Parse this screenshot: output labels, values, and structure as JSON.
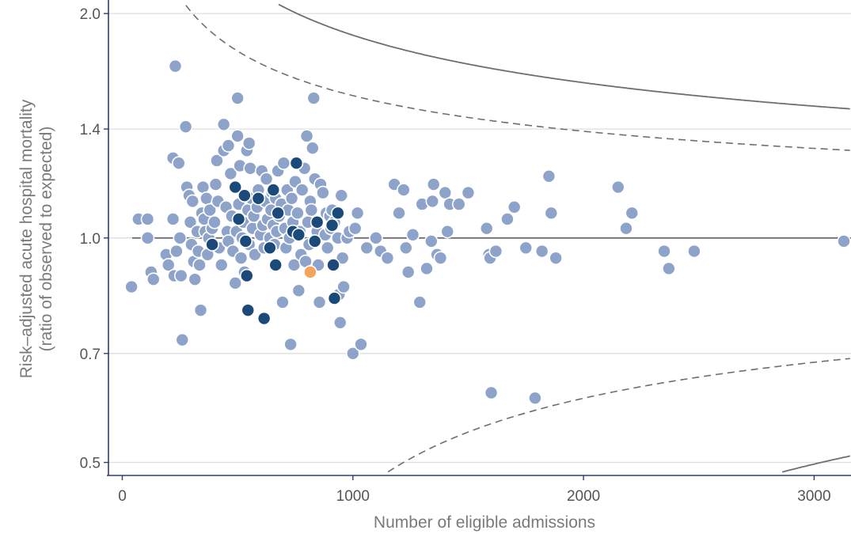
{
  "chart_data": {
    "type": "scatter",
    "title": "",
    "xlabel": "Number of eligible admissions",
    "ylabel_line1": "Risk–adjusted acute hospital mortality",
    "ylabel_line2": "(ratio of observed to expected)",
    "xlim": [
      -60,
      3160
    ],
    "ylim": [
      0.485,
      2.06
    ],
    "y_scale": "log",
    "grid": "horizontal",
    "x_ticks": [
      0,
      1000,
      2000,
      3000
    ],
    "x_tick_labels": [
      "0",
      "1000",
      "2000",
      "3000"
    ],
    "y_ticks": [
      0.5,
      0.7,
      1.0,
      1.4,
      2.0
    ],
    "y_tick_labels": [
      "0.5",
      "0.7",
      "1.0",
      "1.4",
      "2.0"
    ],
    "colors": {
      "other_hospitals": "#8ea3c9",
      "highlight_group": "#1b4a7a",
      "focal_hospital": "#f5a45c",
      "limits": "#6e6e6e",
      "grid": "#dddddd",
      "axis": "#2e3f6e"
    },
    "control_limits": {
      "inner": "dashed",
      "outer": "solid",
      "reference": 1.0
    },
    "series": [
      {
        "role": "other_hospitals",
        "points": [
          [
            40,
            0.86
          ],
          [
            70,
            1.06
          ],
          [
            110,
            1.06
          ],
          [
            110,
            1.0
          ],
          [
            125,
            0.9
          ],
          [
            135,
            0.88
          ],
          [
            190,
            0.95
          ],
          [
            200,
            0.92
          ],
          [
            220,
            1.06
          ],
          [
            220,
            1.28
          ],
          [
            225,
            0.89
          ],
          [
            230,
            1.7
          ],
          [
            235,
            0.96
          ],
          [
            245,
            1.26
          ],
          [
            250,
            1.0
          ],
          [
            255,
            0.89
          ],
          [
            260,
            0.73
          ],
          [
            275,
            1.41
          ],
          [
            280,
            1.17
          ],
          [
            290,
            1.14
          ],
          [
            295,
            1.05
          ],
          [
            300,
            0.98
          ],
          [
            305,
            1.12
          ],
          [
            310,
            0.93
          ],
          [
            315,
            0.88
          ],
          [
            325,
            1.02
          ],
          [
            330,
            0.96
          ],
          [
            335,
            0.92
          ],
          [
            340,
            0.8
          ],
          [
            345,
            1.08
          ],
          [
            350,
            1.17
          ],
          [
            355,
            1.06
          ],
          [
            360,
            1.02
          ],
          [
            365,
            1.13
          ],
          [
            370,
            0.95
          ],
          [
            375,
            1.0
          ],
          [
            380,
            1.09
          ],
          [
            390,
            1.03
          ],
          [
            400,
            1.05
          ],
          [
            405,
            1.18
          ],
          [
            410,
            1.27
          ],
          [
            415,
            1.12
          ],
          [
            420,
            0.97
          ],
          [
            430,
            0.92
          ],
          [
            440,
            1.42
          ],
          [
            440,
            1.31
          ],
          [
            450,
            1.1
          ],
          [
            455,
            1.02
          ],
          [
            460,
            1.33
          ],
          [
            460,
            0.99
          ],
          [
            470,
            1.22
          ],
          [
            475,
            1.07
          ],
          [
            480,
            0.96
          ],
          [
            490,
            0.87
          ],
          [
            495,
            1.02
          ],
          [
            500,
            1.54
          ],
          [
            500,
            1.37
          ],
          [
            505,
            1.11
          ],
          [
            510,
            1.25
          ],
          [
            515,
            0.94
          ],
          [
            520,
            1.0
          ],
          [
            525,
            1.05
          ],
          [
            530,
            0.9
          ],
          [
            535,
            1.14
          ],
          [
            540,
            1.31
          ],
          [
            545,
            1.09
          ],
          [
            550,
            1.34
          ],
          [
            550,
            0.98
          ],
          [
            555,
            1.24
          ],
          [
            560,
            1.13
          ],
          [
            565,
            1.03
          ],
          [
            570,
            1.07
          ],
          [
            575,
            0.95
          ],
          [
            585,
            1.1
          ],
          [
            590,
            1.16
          ],
          [
            600,
            1.01
          ],
          [
            605,
            1.23
          ],
          [
            610,
            1.04
          ],
          [
            615,
            0.97
          ],
          [
            620,
            1.12
          ],
          [
            625,
            1.2
          ],
          [
            630,
            1.06
          ],
          [
            640,
            1.0
          ],
          [
            645,
            1.09
          ],
          [
            650,
            1.15
          ],
          [
            655,
            1.04
          ],
          [
            660,
            0.98
          ],
          [
            665,
            1.13
          ],
          [
            670,
            1.02
          ],
          [
            675,
            1.23
          ],
          [
            680,
            1.07
          ],
          [
            690,
            1.11
          ],
          [
            695,
            0.82
          ],
          [
            700,
            1.26
          ],
          [
            705,
            1.03
          ],
          [
            710,
            0.97
          ],
          [
            715,
            1.16
          ],
          [
            720,
            1.09
          ],
          [
            725,
            1.0
          ],
          [
            730,
            0.72
          ],
          [
            735,
            1.13
          ],
          [
            740,
            1.05
          ],
          [
            745,
            0.92
          ],
          [
            750,
            1.19
          ],
          [
            760,
            1.08
          ],
          [
            765,
            0.85
          ],
          [
            770,
            1.02
          ],
          [
            775,
            0.95
          ],
          [
            780,
            1.16
          ],
          [
            790,
            1.24
          ],
          [
            795,
            0.93
          ],
          [
            800,
            1.37
          ],
          [
            805,
            1.05
          ],
          [
            810,
            0.98
          ],
          [
            815,
            1.12
          ],
          [
            820,
            1.09
          ],
          [
            825,
            1.32
          ],
          [
            830,
            1.54
          ],
          [
            835,
            1.2
          ],
          [
            845,
            1.02
          ],
          [
            850,
            0.92
          ],
          [
            855,
            0.82
          ],
          [
            860,
            1.18
          ],
          [
            870,
            1.15
          ],
          [
            880,
            1.01
          ],
          [
            885,
            1.08
          ],
          [
            890,
            0.97
          ],
          [
            900,
            1.07
          ],
          [
            905,
            1.03
          ],
          [
            910,
            1.09
          ],
          [
            920,
            1.05
          ],
          [
            935,
            1.0
          ],
          [
            940,
            0.84
          ],
          [
            945,
            0.77
          ],
          [
            950,
            1.14
          ],
          [
            955,
            0.94
          ],
          [
            960,
            0.86
          ],
          [
            975,
            1.0
          ],
          [
            985,
            1.02
          ],
          [
            1000,
            0.7
          ],
          [
            1010,
            1.03
          ],
          [
            1020,
            1.08
          ],
          [
            1035,
            0.72
          ],
          [
            1060,
            0.97
          ],
          [
            1100,
            1.0
          ],
          [
            1120,
            0.96
          ],
          [
            1150,
            0.94
          ],
          [
            1180,
            1.18
          ],
          [
            1200,
            1.08
          ],
          [
            1220,
            1.16
          ],
          [
            1230,
            0.97
          ],
          [
            1240,
            0.9
          ],
          [
            1260,
            1.01
          ],
          [
            1290,
            0.82
          ],
          [
            1300,
            1.11
          ],
          [
            1320,
            0.91
          ],
          [
            1340,
            0.99
          ],
          [
            1345,
            1.12
          ],
          [
            1350,
            1.18
          ],
          [
            1365,
            0.95
          ],
          [
            1380,
            0.94
          ],
          [
            1400,
            1.15
          ],
          [
            1410,
            1.02
          ],
          [
            1420,
            1.11
          ],
          [
            1460,
            1.11
          ],
          [
            1500,
            1.15
          ],
          [
            1580,
            1.03
          ],
          [
            1590,
            0.95
          ],
          [
            1595,
            0.94
          ],
          [
            1600,
            0.62
          ],
          [
            1620,
            0.96
          ],
          [
            1670,
            1.06
          ],
          [
            1700,
            1.1
          ],
          [
            1750,
            0.97
          ],
          [
            1790,
            0.61
          ],
          [
            1820,
            0.96
          ],
          [
            1850,
            1.21
          ],
          [
            1860,
            1.08
          ],
          [
            1880,
            0.94
          ],
          [
            2150,
            1.17
          ],
          [
            2185,
            1.03
          ],
          [
            2210,
            1.08
          ],
          [
            2350,
            0.96
          ],
          [
            2370,
            0.91
          ],
          [
            2480,
            0.96
          ],
          [
            3160,
            0.99
          ]
        ]
      },
      {
        "role": "highlight_group",
        "points": [
          [
            390,
            0.98
          ],
          [
            490,
            1.17
          ],
          [
            505,
            1.06
          ],
          [
            530,
            1.14
          ],
          [
            535,
            0.99
          ],
          [
            540,
            0.89
          ],
          [
            545,
            0.8
          ],
          [
            590,
            1.13
          ],
          [
            615,
            0.78
          ],
          [
            640,
            0.97
          ],
          [
            655,
            1.16
          ],
          [
            665,
            0.92
          ],
          [
            675,
            1.08
          ],
          [
            740,
            1.02
          ],
          [
            755,
            1.26
          ],
          [
            765,
            1.01
          ],
          [
            835,
            0.99
          ],
          [
            845,
            1.05
          ],
          [
            910,
            1.04
          ],
          [
            915,
            0.92
          ],
          [
            920,
            0.83
          ],
          [
            935,
            1.08
          ]
        ]
      },
      {
        "role": "focal_hospital",
        "points": [
          [
            815,
            0.9
          ]
        ]
      }
    ]
  }
}
